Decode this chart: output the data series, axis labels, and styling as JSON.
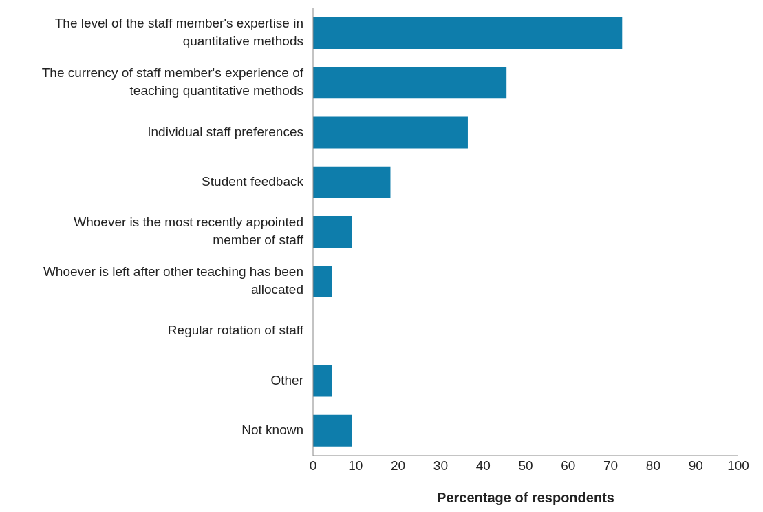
{
  "chart_data": {
    "type": "bar",
    "orientation": "horizontal",
    "xlabel": "Percentage of respondents",
    "categories": [
      "The level of the staff member's expertise in quantitative methods",
      "The currency of staff member's experience of teaching quantitative methods",
      "Individual staff preferences",
      "Student feedback",
      "Whoever is the most recently appointed member of staff",
      "Whoever is left after other teaching has been allocated",
      "Regular rotation of staff",
      "Other",
      "Not known"
    ],
    "values": [
      72.7,
      45.5,
      36.4,
      18.2,
      9.1,
      4.5,
      0,
      4.5,
      9.1
    ],
    "color": "#0e7dab",
    "xlim": [
      0,
      100
    ],
    "xticks": [
      0,
      10,
      20,
      30,
      40,
      50,
      60,
      70,
      80,
      90,
      100
    ],
    "grid": false,
    "legend": false
  }
}
